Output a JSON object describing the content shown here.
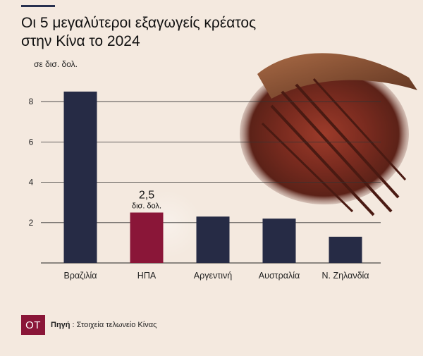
{
  "header": {
    "title_line1": "Οι 5 μεγαλύτεροι εξαγωγείς κρέατος",
    "title_line2": "στην Κίνα το 2024",
    "unit": "σε δισ. δολ."
  },
  "annotation": {
    "value": "2,5",
    "unit": "δισ. δολ."
  },
  "source": {
    "logo": "ΟΤ",
    "label": "Πηγή",
    "separator": " : ",
    "text": "Στοιχεία τελωνείο Κίνας"
  },
  "colors": {
    "bar": "#262b45",
    "highlight": "#8a1638",
    "grid": "#333333",
    "background": "#f4e9df"
  },
  "chart_data": {
    "type": "bar",
    "title": "Οι 5 μεγαλύτεροι εξαγωγείς κρέατος στην Κίνα το 2024",
    "ylabel": "σε δισ. δολ.",
    "categories": [
      "Βραζιλία",
      "ΗΠΑ",
      "Αργεντινή",
      "Αυστραλία",
      "Ν. Ζηλανδία"
    ],
    "values": [
      8.5,
      2.5,
      2.3,
      2.2,
      1.3
    ],
    "highlight": [
      "ΗΠΑ"
    ],
    "yticks": [
      2,
      4,
      6,
      8
    ],
    "ylim": [
      0,
      9
    ],
    "grid": true
  }
}
